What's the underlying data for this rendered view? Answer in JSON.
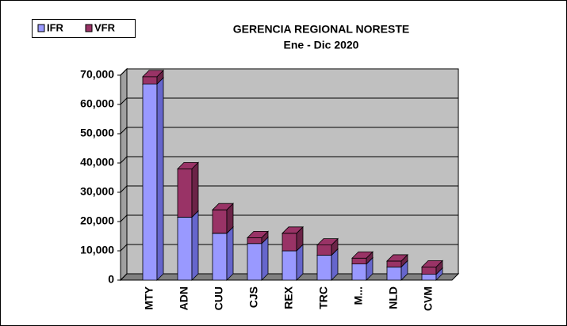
{
  "chart_data": {
    "type": "bar3d-stacked",
    "title": "GERENCIA REGIONAL NORESTE",
    "subtitle": "Ene - Dic 2020",
    "categories": [
      "MTY",
      "ADN",
      "CUU",
      "CJS",
      "REX",
      "TRC",
      "M...",
      "NLD",
      "CVM"
    ],
    "series": [
      {
        "name": "IFR",
        "color": "#9999ff",
        "side": "#6666cc",
        "values": [
          67000,
          21500,
          16000,
          12500,
          10000,
          8500,
          5500,
          4500,
          2000
        ]
      },
      {
        "name": "VFR",
        "color": "#993366",
        "side": "#6b2347",
        "values": [
          2500,
          16500,
          8000,
          2000,
          6000,
          3500,
          2000,
          2000,
          2500
        ]
      }
    ],
    "ylim": [
      0,
      70000
    ],
    "yticks": [
      0,
      {
        "value": 10000,
        "label": "10,000"
      },
      {
        "value": 20000,
        "label": "20,000"
      },
      {
        "value": 30000,
        "label": "30,000"
      },
      {
        "value": 40000,
        "label": "40,000"
      },
      {
        "value": 50000,
        "label": "50,000"
      },
      {
        "value": 60000,
        "label": "60,000"
      },
      {
        "value": 70000,
        "label": "70,000"
      }
    ],
    "grid": true,
    "legend": "top-left"
  }
}
